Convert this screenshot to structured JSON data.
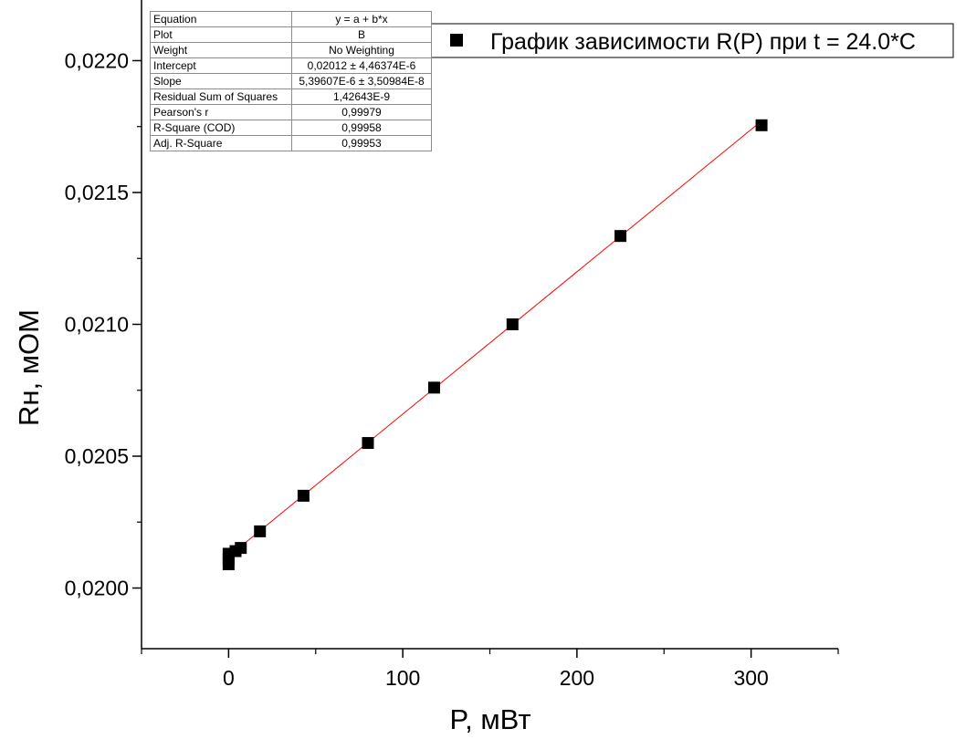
{
  "chart_data": {
    "type": "scatter",
    "xlabel": "P, мВт",
    "ylabel": "Rн, мОМ",
    "xlim": [
      -50,
      350
    ],
    "ylim": [
      0.01977,
      0.02223
    ],
    "x_ticks": [
      {
        "value": 0,
        "label": "0"
      },
      {
        "value": 100,
        "label": "100"
      },
      {
        "value": 200,
        "label": "200"
      },
      {
        "value": 300,
        "label": "300"
      }
    ],
    "y_ticks": [
      {
        "value": 0.02,
        "label": "0,0200"
      },
      {
        "value": 0.0205,
        "label": "0,0205"
      },
      {
        "value": 0.021,
        "label": "0,0210"
      },
      {
        "value": 0.0215,
        "label": "0,0215"
      },
      {
        "value": 0.022,
        "label": "0,0220"
      }
    ],
    "legend": {
      "position": "top-right"
    },
    "series": [
      {
        "name": "График зависимости R(P) при t = 24.0*C",
        "color": "#000000",
        "marker": "square",
        "points": [
          {
            "x": 0,
            "y": 0.02009
          },
          {
            "x": 0,
            "y": 0.02011
          },
          {
            "x": 0,
            "y": 0.02013
          },
          {
            "x": 4,
            "y": 0.02014
          },
          {
            "x": 7,
            "y": 0.020152
          },
          {
            "x": 18,
            "y": 0.020215
          },
          {
            "x": 43,
            "y": 0.02035
          },
          {
            "x": 80,
            "y": 0.02055
          },
          {
            "x": 118,
            "y": 0.02076
          },
          {
            "x": 163,
            "y": 0.021
          },
          {
            "x": 225,
            "y": 0.021335
          },
          {
            "x": 306,
            "y": 0.021755
          }
        ]
      }
    ],
    "fit": {
      "color": "#ff0000",
      "intercept": 0.02012,
      "slope": 5.39607e-06,
      "x_range": [
        0,
        306
      ]
    },
    "stats_table": [
      {
        "key": "Equation",
        "value": "y = a + b*x"
      },
      {
        "key": "Plot",
        "value": "B"
      },
      {
        "key": "Weight",
        "value": "No Weighting"
      },
      {
        "key": "Intercept",
        "value": "0,02012 ± 4,46374E-6"
      },
      {
        "key": "Slope",
        "value": "5,39607E-6 ± 3,50984E-8"
      },
      {
        "key": "Residual Sum of Squares",
        "value": "1,42643E-9"
      },
      {
        "key": "Pearson's r",
        "value": "0,99979"
      },
      {
        "key": "R-Square (COD)",
        "value": "0,99958"
      },
      {
        "key": "Adj. R-Square",
        "value": "0,99953"
      }
    ]
  }
}
